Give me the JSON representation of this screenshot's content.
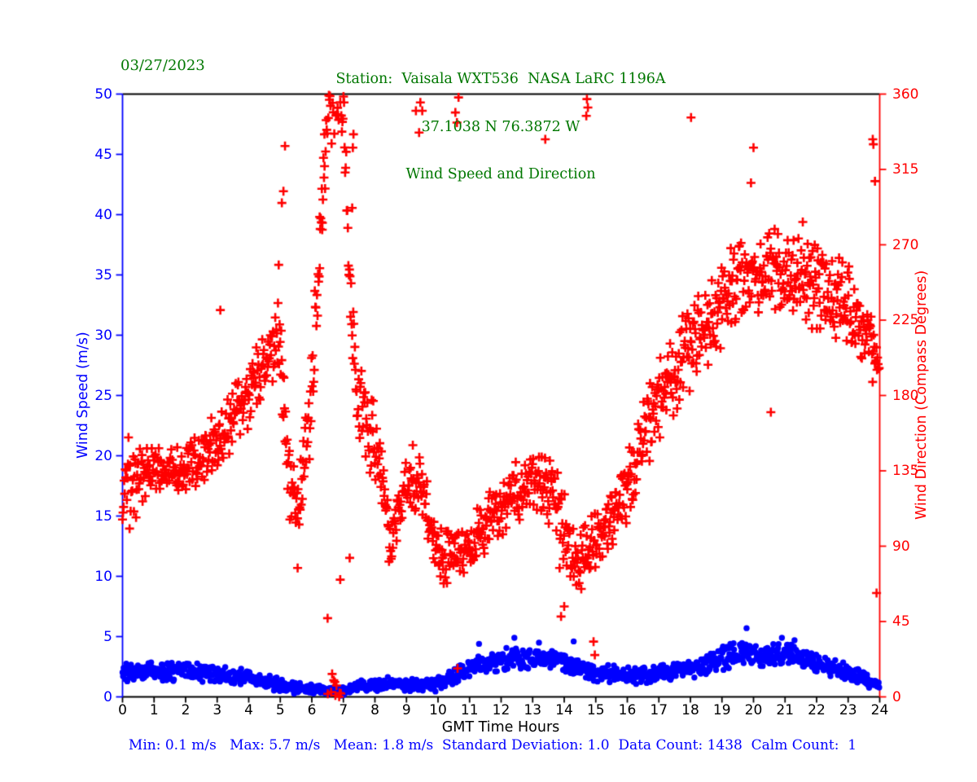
{
  "header": {
    "date": "03/27/2023",
    "title_line1": "Station:  Vaisala WXT536  NASA LaRC 1196A",
    "title_line2": "37.1038 N 76.3872 W",
    "title_line3": "Wind Speed and Direction"
  },
  "footer": {
    "stats": "Min: 0.1 m/s   Max: 5.7 m/s   Mean: 1.8 m/s  Standard Deviation: 1.0  Data Count: 1438  Calm Count:  1"
  },
  "chart_data": {
    "type": "scatter",
    "title": "Station:  Vaisala WXT536  NASA LaRC 1196A",
    "subtitle1": "37.1038 N 76.3872 W",
    "subtitle2": "Wind Speed and Direction",
    "date": "03/27/2023",
    "xlabel": "GMT Time Hours",
    "ylabel_left": "Wind Speed (m/s)",
    "ylabel_right": "Wind Direction (Compass Degrees)",
    "x_range": [
      0,
      24
    ],
    "x_ticks": [
      0,
      1,
      2,
      3,
      4,
      5,
      6,
      7,
      8,
      9,
      10,
      11,
      12,
      13,
      14,
      15,
      16,
      17,
      18,
      19,
      20,
      21,
      22,
      23,
      24
    ],
    "y_left_range": [
      0,
      50
    ],
    "y_left_ticks": [
      0,
      5,
      10,
      15,
      20,
      25,
      30,
      35,
      40,
      45,
      50
    ],
    "y_right_range": [
      0,
      360
    ],
    "y_right_ticks": [
      0,
      45,
      90,
      135,
      180,
      225,
      270,
      315,
      360
    ],
    "grid": false,
    "legend": "none",
    "colors": {
      "speed": "#0000ff",
      "direction": "#ff0000",
      "title": "#007700",
      "frame": "#000000",
      "background": "#ffffff"
    },
    "stats": {
      "min_ms": 0.1,
      "max_ms": 5.7,
      "mean_ms": 1.8,
      "std_dev": 1.0,
      "data_count": 1438,
      "calm_count": 1
    },
    "series": [
      {
        "name": "wind_speed",
        "axis": "left",
        "marker": "circle",
        "color": "#0000ff",
        "n_points": 1430,
        "units": "m/s",
        "profile_mean_spread_by_hour": [
          [
            0,
            2.0,
            0.9
          ],
          [
            0.5,
            2.1,
            0.9
          ],
          [
            1,
            2.2,
            0.9
          ],
          [
            1.5,
            2.1,
            0.9
          ],
          [
            2,
            2.2,
            1.0
          ],
          [
            2.5,
            2.0,
            0.9
          ],
          [
            3,
            1.8,
            0.8
          ],
          [
            3.5,
            1.7,
            0.8
          ],
          [
            4,
            1.6,
            0.8
          ],
          [
            4.5,
            1.3,
            0.7
          ],
          [
            5,
            1.0,
            0.7
          ],
          [
            5.5,
            0.8,
            0.6
          ],
          [
            6,
            0.7,
            0.5
          ],
          [
            6.5,
            0.5,
            0.4
          ],
          [
            7,
            0.5,
            0.4
          ],
          [
            7.5,
            0.9,
            0.5
          ],
          [
            8,
            1.0,
            0.6
          ],
          [
            8.5,
            1.1,
            0.6
          ],
          [
            9,
            1.0,
            0.6
          ],
          [
            9.5,
            0.9,
            0.6
          ],
          [
            10,
            1.0,
            0.7
          ],
          [
            10.5,
            1.6,
            0.8
          ],
          [
            11,
            2.4,
            0.9
          ],
          [
            11.5,
            2.8,
            0.9
          ],
          [
            12,
            3.0,
            1.0
          ],
          [
            12.5,
            3.2,
            1.0
          ],
          [
            13,
            3.0,
            1.0
          ],
          [
            13.5,
            3.2,
            1.0
          ],
          [
            14,
            3.0,
            1.1
          ],
          [
            14.5,
            2.2,
            0.9
          ],
          [
            15,
            2.0,
            0.8
          ],
          [
            15.5,
            1.9,
            0.8
          ],
          [
            16,
            1.8,
            0.8
          ],
          [
            16.5,
            1.8,
            0.8
          ],
          [
            17,
            1.9,
            0.8
          ],
          [
            17.5,
            2.0,
            0.8
          ],
          [
            18,
            2.2,
            0.9
          ],
          [
            18.5,
            2.6,
            1.0
          ],
          [
            19,
            3.2,
            1.1
          ],
          [
            19.5,
            3.6,
            1.1
          ],
          [
            20,
            3.6,
            1.1
          ],
          [
            20.5,
            3.4,
            1.1
          ],
          [
            21,
            3.6,
            1.0
          ],
          [
            21.5,
            3.2,
            1.0
          ],
          [
            22,
            2.8,
            0.9
          ],
          [
            22.5,
            2.4,
            0.9
          ],
          [
            23,
            2.0,
            0.8
          ],
          [
            23.5,
            1.5,
            0.7
          ],
          [
            24,
            0.9,
            0.5
          ]
        ],
        "extra_points": [
          [
            19.78,
            5.7
          ],
          [
            12.42,
            4.9
          ],
          [
            11.3,
            4.4
          ],
          [
            13.2,
            4.5
          ],
          [
            14.3,
            4.6
          ],
          [
            20.9,
            4.9
          ],
          [
            21.3,
            4.7
          ],
          [
            6.93,
            0.1
          ]
        ],
        "value_clamp": [
          0.1,
          5.7
        ]
      },
      {
        "name": "wind_direction",
        "axis": "right",
        "marker": "plus",
        "color": "#ff0000",
        "n_points": 1398,
        "units": "degrees",
        "wrap": 360,
        "profile_mean_spread_by_hour": [
          [
            0,
            125,
            38
          ],
          [
            0.5,
            130,
            22
          ],
          [
            1,
            135,
            20
          ],
          [
            1.5,
            136,
            16
          ],
          [
            2,
            138,
            16
          ],
          [
            2.5,
            142,
            20
          ],
          [
            3,
            155,
            20
          ],
          [
            3.5,
            167,
            22
          ],
          [
            4,
            182,
            25
          ],
          [
            4.5,
            200,
            28
          ],
          [
            5,
            215,
            32
          ],
          [
            5.3,
            120,
            25
          ],
          [
            5.6,
            118,
            22
          ],
          [
            6,
            180,
            35
          ],
          [
            6.5,
            352,
            22
          ],
          [
            7,
            354,
            25
          ],
          [
            7.3,
            215,
            45
          ],
          [
            7.5,
            175,
            38
          ],
          [
            8,
            150,
            38
          ],
          [
            8.5,
            95,
            20
          ],
          [
            9,
            130,
            25
          ],
          [
            9.5,
            122,
            28
          ],
          [
            10,
            85,
            22
          ],
          [
            10.5,
            82,
            20
          ],
          [
            11,
            92,
            18
          ],
          [
            11.5,
            102,
            18
          ],
          [
            12,
            112,
            20
          ],
          [
            12.5,
            124,
            25
          ],
          [
            13,
            130,
            25
          ],
          [
            13.5,
            124,
            25
          ],
          [
            14,
            95,
            35
          ],
          [
            14.5,
            82,
            22
          ],
          [
            15,
            92,
            25
          ],
          [
            15.5,
            106,
            22
          ],
          [
            16,
            122,
            25
          ],
          [
            16.5,
            158,
            28
          ],
          [
            17,
            178,
            30
          ],
          [
            17.5,
            196,
            30
          ],
          [
            18,
            210,
            30
          ],
          [
            18.5,
            221,
            27
          ],
          [
            19,
            233,
            30
          ],
          [
            19.5,
            245,
            32
          ],
          [
            20,
            251,
            33
          ],
          [
            20.5,
            255,
            32
          ],
          [
            21,
            251,
            32
          ],
          [
            21.5,
            255,
            32
          ],
          [
            22,
            246,
            31
          ],
          [
            22.5,
            240,
            29
          ],
          [
            23,
            230,
            29
          ],
          [
            23.5,
            216,
            30
          ],
          [
            24,
            196,
            20
          ]
        ],
        "extra_points": [
          [
            3.1,
            231
          ],
          [
            4.95,
            258
          ],
          [
            5.05,
            295
          ],
          [
            5.1,
            302
          ],
          [
            5.15,
            329
          ],
          [
            5.55,
            77
          ],
          [
            6.25,
            256
          ],
          [
            6.33,
            279
          ],
          [
            6.4,
            336
          ],
          [
            6.5,
            47
          ],
          [
            6.9,
            70
          ],
          [
            7.2,
            83
          ],
          [
            7.28,
            292
          ],
          [
            7.3,
            328
          ],
          [
            7.32,
            336
          ],
          [
            9.3,
            350
          ],
          [
            9.4,
            337
          ],
          [
            9.44,
            355
          ],
          [
            9.5,
            350
          ],
          [
            10.55,
            349
          ],
          [
            10.6,
            343
          ],
          [
            10.65,
            358
          ],
          [
            10.62,
            17
          ],
          [
            13.4,
            333
          ],
          [
            13.9,
            48
          ],
          [
            14.0,
            54
          ],
          [
            14.7,
            347
          ],
          [
            14.72,
            357
          ],
          [
            14.75,
            352
          ],
          [
            14.93,
            33
          ],
          [
            14.97,
            25
          ],
          [
            18.02,
            346
          ],
          [
            19.92,
            307
          ],
          [
            20.0,
            328
          ],
          [
            20.55,
            170
          ],
          [
            23.78,
            333
          ],
          [
            23.8,
            330
          ],
          [
            23.85,
            308
          ],
          [
            23.9,
            62
          ]
        ]
      }
    ]
  }
}
